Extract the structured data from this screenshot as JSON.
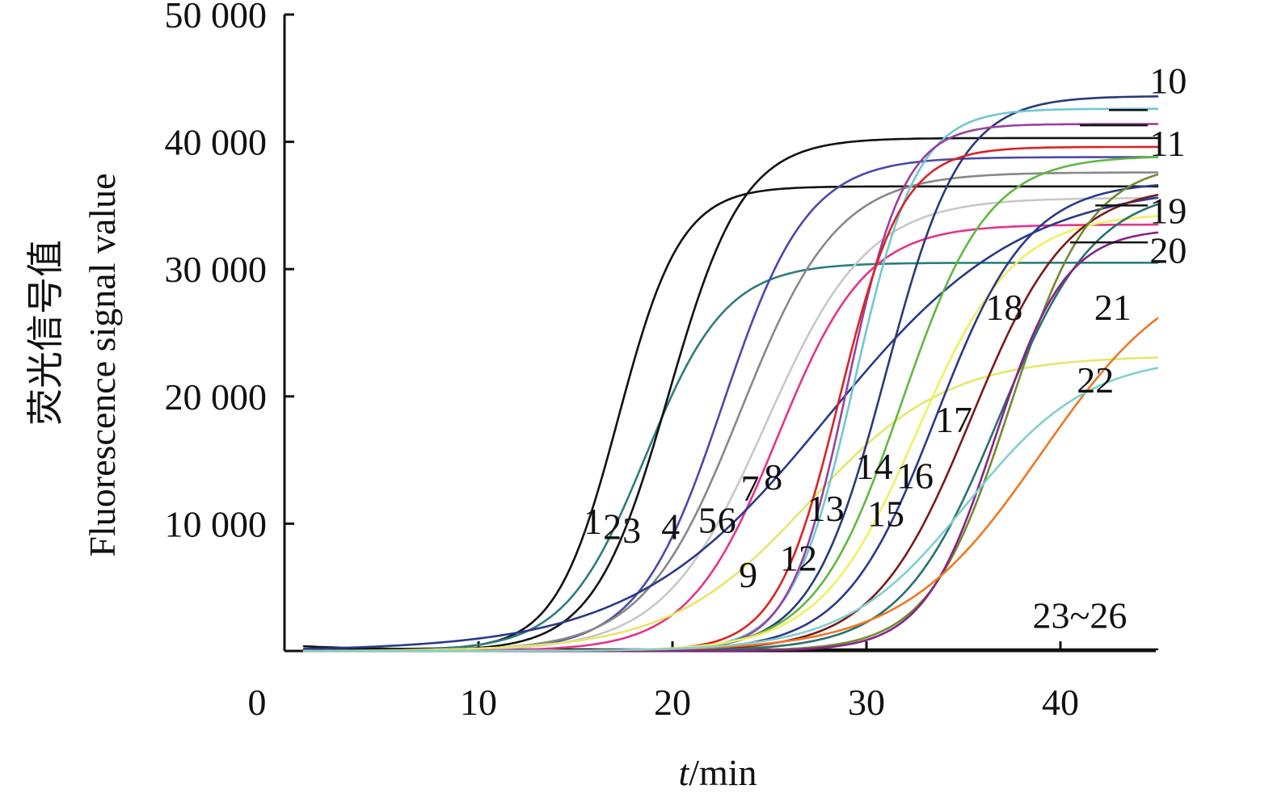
{
  "chart_data": {
    "type": "line",
    "xlabel_italic": "t",
    "xlabel_rest": "/min",
    "ylabel_cn": "荧光信号值",
    "ylabel_en": "Fluorescence signal value",
    "xlim": [
      0,
      45
    ],
    "ylim": [
      0,
      50000
    ],
    "x_ticks": [
      0,
      10,
      20,
      30,
      40
    ],
    "x_tick_labels": [
      "0",
      "10",
      "20",
      "30",
      "40"
    ],
    "y_ticks": [
      10000,
      20000,
      30000,
      40000,
      50000
    ],
    "y_tick_labels": [
      "10 000",
      "20 000",
      "30 000",
      "40 000",
      "50 000"
    ],
    "x_range": [
      1,
      45
    ],
    "curves": [
      {
        "name": "1",
        "color": "#111111",
        "mid": 17.2,
        "max": 36500,
        "k": 0.62
      },
      {
        "name": "2",
        "color": "#2e7c7e",
        "mid": 18.6,
        "max": 30500,
        "k": 0.48
      },
      {
        "name": "3",
        "color": "#111111",
        "mid": 19.8,
        "max": 40300,
        "k": 0.52
      },
      {
        "name": "4",
        "color": "#4a4aa8",
        "mid": 22.6,
        "max": 38800,
        "k": 0.46
      },
      {
        "name": "5",
        "color": "#888888",
        "mid": 23.5,
        "max": 37600,
        "k": 0.4
      },
      {
        "name": "6",
        "color": "#c8c8c8",
        "mid": 24.8,
        "max": 35600,
        "k": 0.38
      },
      {
        "name": "7",
        "color": "#e6338a",
        "mid": 25.4,
        "max": 33500,
        "k": 0.44
      },
      {
        "name": "8",
        "color": "#2a3a8a",
        "mid": 28.0,
        "max": 36800,
        "k": 0.2
      },
      {
        "name": "9",
        "color": "#e6e668",
        "mid": 27.0,
        "max": 23200,
        "k": 0.28
      },
      {
        "name": "10",
        "color": "#2a3a7a",
        "mid": 31.0,
        "max": 43600,
        "k": 0.52
      },
      {
        "name": "11",
        "color": "#70c8d0",
        "mid": 29.4,
        "max": 42600,
        "k": 0.62
      },
      {
        "name": "12",
        "color": "#9a40a0",
        "mid": 29.0,
        "max": 41400,
        "k": 0.68
      },
      {
        "name": "13",
        "color": "#dd2222",
        "mid": 28.6,
        "max": 39600,
        "k": 0.62
      },
      {
        "name": "14",
        "color": "#60b840",
        "mid": 31.8,
        "max": 38900,
        "k": 0.45
      },
      {
        "name": "15",
        "color": "#f0f060",
        "mid": 32.6,
        "max": 34400,
        "k": 0.4
      },
      {
        "name": "16",
        "color": "#2a3a8a",
        "mid": 33.6,
        "max": 36900,
        "k": 0.42
      },
      {
        "name": "17",
        "color": "#7a1a1a",
        "mid": 35.4,
        "max": 36600,
        "k": 0.4
      },
      {
        "name": "18",
        "color": "#708a30",
        "mid": 37.4,
        "max": 38400,
        "k": 0.48
      },
      {
        "name": "19",
        "color": "#2a7070",
        "mid": 36.8,
        "max": 36400,
        "k": 0.4
      },
      {
        "name": "20",
        "color": "#882288",
        "mid": 36.6,
        "max": 33200,
        "k": 0.55
      },
      {
        "name": "21",
        "color": "#ee7722",
        "mid": 39.0,
        "max": 31000,
        "k": 0.28
      },
      {
        "name": "22",
        "color": "#80d0d0",
        "mid": 35.2,
        "max": 23200,
        "k": 0.32
      }
    ],
    "baseline": {
      "name": "23~26",
      "color": "#111111",
      "value": 0
    },
    "curve_labels": [
      {
        "text": "1",
        "x": 15.9,
        "y": 9200
      },
      {
        "text": "2",
        "x": 16.9,
        "y": 8800
      },
      {
        "text": "3",
        "x": 17.9,
        "y": 8500
      },
      {
        "text": "4",
        "x": 19.9,
        "y": 8800
      },
      {
        "text": "5",
        "x": 21.8,
        "y": 9300
      },
      {
        "text": "6",
        "x": 22.8,
        "y": 9300
      },
      {
        "text": "7",
        "x": 24.0,
        "y": 11800
      },
      {
        "text": "8",
        "x": 25.2,
        "y": 12700
      },
      {
        "text": "9",
        "x": 23.9,
        "y": 5000
      },
      {
        "text": "12",
        "x": 26.5,
        "y": 6300
      },
      {
        "text": "13",
        "x": 27.9,
        "y": 10200
      },
      {
        "text": "14",
        "x": 30.4,
        "y": 13500
      },
      {
        "text": "15",
        "x": 31.0,
        "y": 9800
      },
      {
        "text": "16",
        "x": 32.5,
        "y": 12800
      },
      {
        "text": "17",
        "x": 34.5,
        "y": 17200
      },
      {
        "text": "18",
        "x": 37.1,
        "y": 26000
      },
      {
        "text": "21",
        "x": 42.7,
        "y": 26000
      },
      {
        "text": "22",
        "x": 41.8,
        "y": 20300
      },
      {
        "text": "23~26",
        "x": 41.0,
        "y": 1800
      }
    ],
    "leader_labels": [
      {
        "text": "10",
        "x_from": 42.5,
        "y_from": 42500,
        "x_to": 44.5,
        "y_to": 42500,
        "tx": 44.6,
        "ty": 43800
      },
      {
        "text": "11",
        "x_from": 41.0,
        "y_from": 41300,
        "x_to": 44.5,
        "y_to": 41300,
        "tx": 44.6,
        "ty": 38900
      },
      {
        "text": "19",
        "x_from": 41.8,
        "y_from": 35000,
        "x_to": 44.5,
        "y_to": 35000,
        "tx": 44.6,
        "ty": 33600
      },
      {
        "text": "20",
        "x_from": 40.5,
        "y_from": 32100,
        "x_to": 44.5,
        "y_to": 32100,
        "tx": 44.6,
        "ty": 30500
      }
    ]
  }
}
